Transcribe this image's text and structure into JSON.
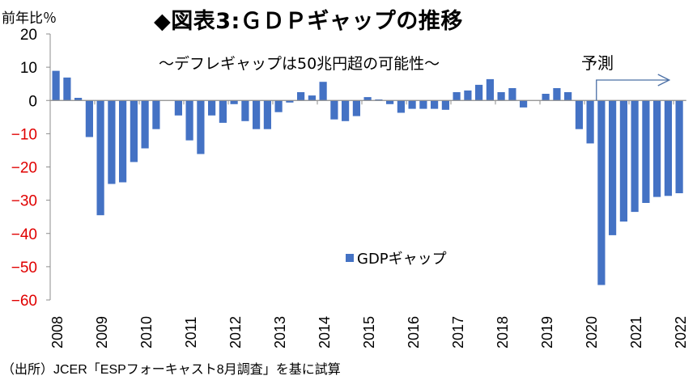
{
  "chart_data": {
    "type": "bar",
    "title": "◆図表3:ＧＤＰギャップの推移",
    "subtitle": "～デフレギャップは50兆円超の可能性～",
    "ylabel": "前年比％",
    "xlabel": "",
    "ylim": [
      -60,
      20
    ],
    "yticks": [
      20,
      10,
      0,
      -10,
      -20,
      -30,
      -40,
      -50,
      -60
    ],
    "negative_tick_color": "#E00000",
    "positive_tick_color": "#000000",
    "bar_color": "#4472C4",
    "axis_color": "#8C8C8C",
    "grid": false,
    "legend": {
      "entries": [
        "GDPギャップ"
      ],
      "position": "center-bottom"
    },
    "annotation": {
      "text": "予測",
      "arrow": "right",
      "starts_at": "2020Q2"
    },
    "x_year_labels": [
      "2008",
      "2009",
      "2010",
      "2011",
      "2012",
      "2013",
      "2014",
      "2015",
      "2016",
      "2017",
      "2018",
      "2019",
      "2020",
      "2021",
      "2022"
    ],
    "categories": [
      "2008Q1",
      "2008Q2",
      "2008Q3",
      "2008Q4",
      "2009Q1",
      "2009Q2",
      "2009Q3",
      "2009Q4",
      "2010Q1",
      "2010Q2",
      "2010Q3",
      "2010Q4",
      "2011Q1",
      "2011Q2",
      "2011Q3",
      "2011Q4",
      "2012Q1",
      "2012Q2",
      "2012Q3",
      "2012Q4",
      "2013Q1",
      "2013Q2",
      "2013Q3",
      "2013Q4",
      "2014Q1",
      "2014Q2",
      "2014Q3",
      "2014Q4",
      "2015Q1",
      "2015Q2",
      "2015Q3",
      "2015Q4",
      "2016Q1",
      "2016Q2",
      "2016Q3",
      "2016Q4",
      "2017Q1",
      "2017Q2",
      "2017Q3",
      "2017Q4",
      "2018Q1",
      "2018Q2",
      "2018Q3",
      "2018Q4",
      "2019Q1",
      "2019Q2",
      "2019Q3",
      "2019Q4",
      "2020Q1",
      "2020Q2",
      "2020Q3",
      "2020Q4",
      "2021Q1",
      "2021Q2",
      "2021Q3",
      "2021Q4",
      "2022Q1"
    ],
    "series": [
      {
        "name": "GDPギャップ",
        "values": [
          8.9,
          6.9,
          0.8,
          -11.0,
          -34.5,
          -25.1,
          -24.6,
          -18.5,
          -14.4,
          -8.6,
          0.0,
          -4.5,
          -12.0,
          -16.1,
          -4.5,
          -6.7,
          -1.1,
          -6.2,
          -8.6,
          -8.6,
          -3.5,
          -0.6,
          2.5,
          1.5,
          5.6,
          -5.7,
          -6.2,
          -4.7,
          1.0,
          0.3,
          -1.1,
          -3.7,
          -2.5,
          -2.5,
          -2.5,
          -2.8,
          2.5,
          3.0,
          4.7,
          6.4,
          2.5,
          3.7,
          -2.1,
          0.0,
          2.0,
          3.7,
          2.5,
          -8.6,
          -12.9,
          -55.5,
          -40.5,
          -36.4,
          -33.5,
          -30.8,
          -29.0,
          -28.7,
          -27.9
        ]
      }
    ]
  },
  "source_note": "（出所）JCER「ESPフォーキャスト8月調査」を基に試算"
}
